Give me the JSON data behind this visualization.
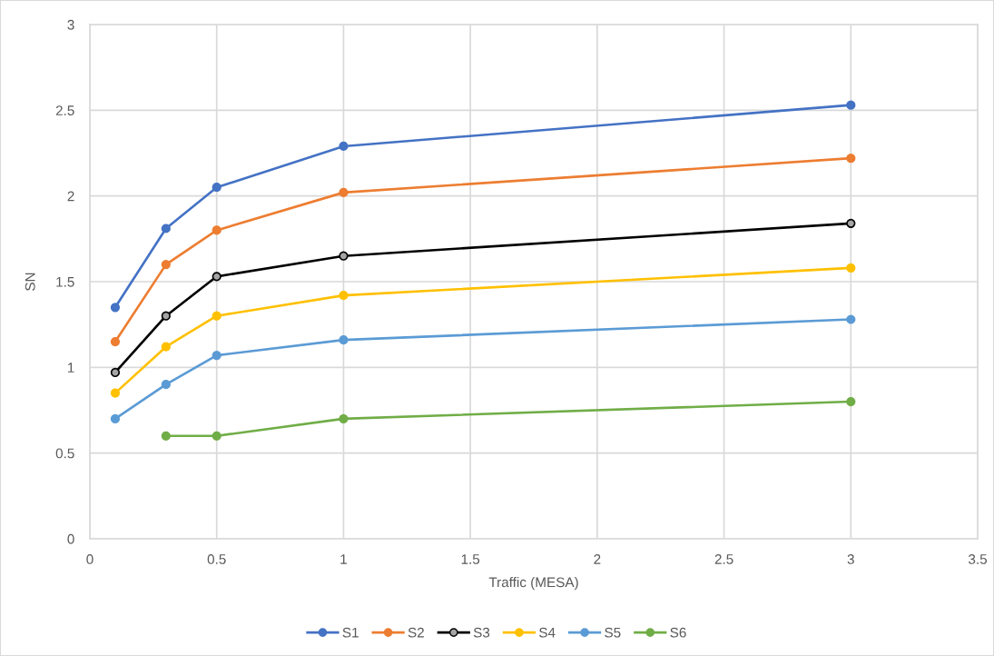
{
  "chart_data": {
    "type": "line",
    "xlabel": "Traffic (MESA)",
    "ylabel": "SN",
    "x": [
      0.1,
      0.3,
      0.5,
      1,
      3
    ],
    "xlim": [
      0,
      3.5
    ],
    "xticks": [
      0,
      0.5,
      1,
      1.5,
      2,
      2.5,
      3,
      3.5
    ],
    "ylim": [
      0,
      3
    ],
    "yticks": [
      0,
      0.5,
      1,
      1.5,
      2,
      2.5,
      3
    ],
    "grid": true,
    "legend": "bottom",
    "marker": "circle",
    "line_style": "solid",
    "series": [
      {
        "name": "S1",
        "color": "#4472c4",
        "values": [
          1.35,
          1.81,
          2.05,
          2.29,
          2.53
        ]
      },
      {
        "name": "S2",
        "color": "#ed7d31",
        "values": [
          1.15,
          1.6,
          1.8,
          2.02,
          2.22
        ]
      },
      {
        "name": "S3",
        "color": "#000000",
        "colors": [
          "#a5a5a5",
          "#a5a5a5",
          "#a5a5a5",
          "#a5a5a5",
          "#a5a5a5"
        ],
        "values": [
          0.97,
          1.3,
          1.53,
          1.65,
          1.84
        ]
      },
      {
        "name": "S4",
        "color": "#ffc000",
        "values": [
          0.85,
          1.12,
          1.3,
          1.42,
          1.58
        ]
      },
      {
        "name": "S5",
        "color": "#5b9bd5",
        "values": [
          0.7,
          0.9,
          1.07,
          1.16,
          1.28
        ]
      },
      {
        "name": "S6",
        "color": "#70ad47",
        "x": [
          0.3,
          0.5,
          1,
          3
        ],
        "values": [
          0.6,
          0.6,
          0.7,
          0.8
        ]
      }
    ]
  }
}
